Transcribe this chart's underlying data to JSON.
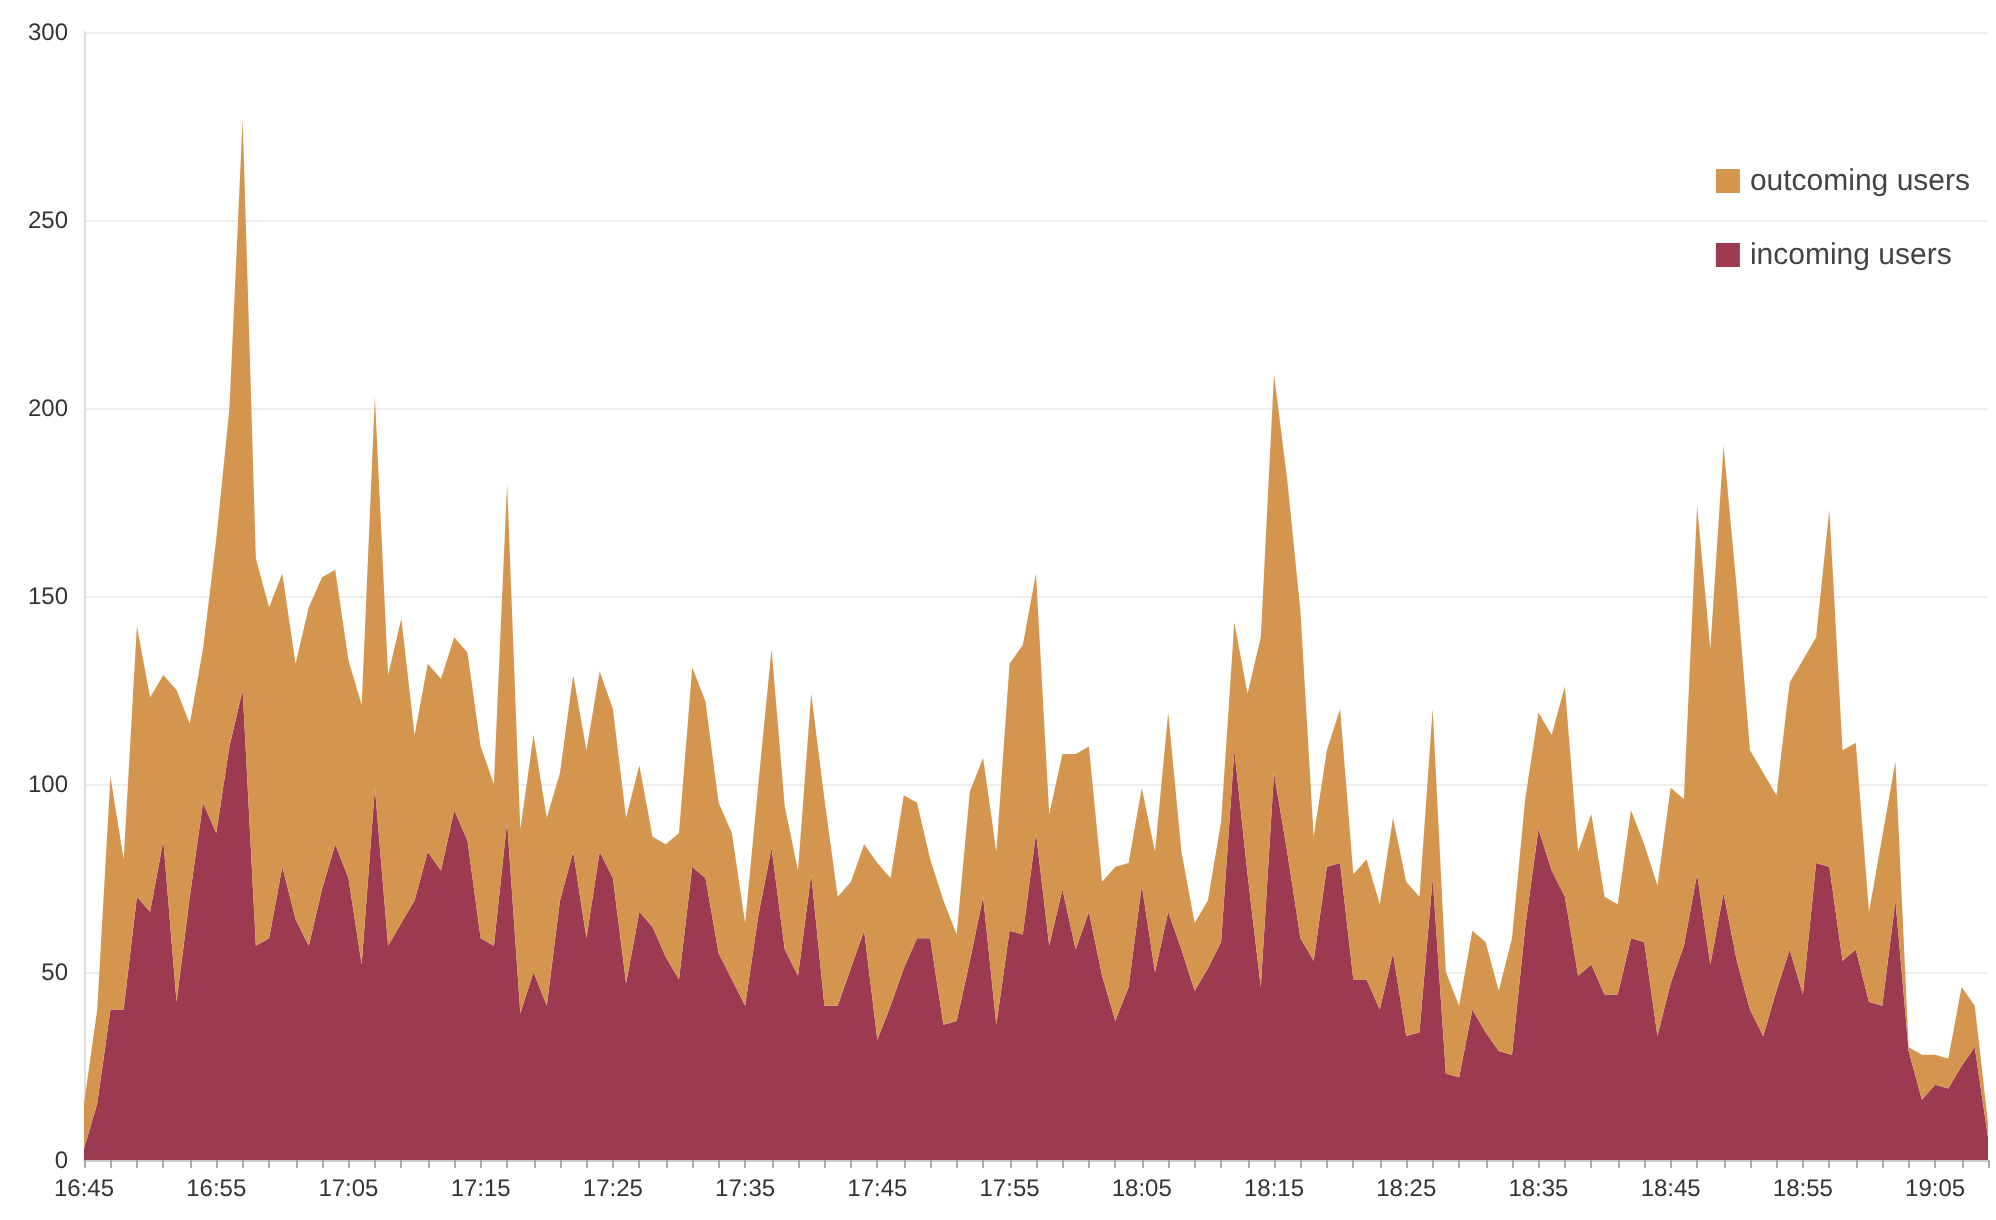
{
  "chart_data": {
    "type": "area",
    "stacked": true,
    "grid": "y",
    "legend": "top right",
    "categories": [
      "16:45",
      null,
      null,
      null,
      null,
      null,
      null,
      null,
      null,
      null,
      "16:55",
      null,
      null,
      null,
      null,
      null,
      null,
      null,
      null,
      null,
      "17:05",
      null,
      null,
      null,
      null,
      null,
      null,
      null,
      null,
      null,
      "17:15",
      null,
      null,
      null,
      null,
      null,
      null,
      null,
      null,
      null,
      "17:25",
      null,
      null,
      null,
      null,
      null,
      null,
      null,
      null,
      null,
      "17:35",
      null,
      null,
      null,
      null,
      null,
      null,
      null,
      null,
      null,
      "17:45",
      null,
      null,
      null,
      null,
      null,
      null,
      null,
      null,
      null,
      "17:55",
      null,
      null,
      null,
      null,
      null,
      null,
      null,
      null,
      null,
      "18:05",
      null,
      null,
      null,
      null,
      null,
      null,
      null,
      null,
      null,
      "18:15",
      null,
      null,
      null,
      null,
      null,
      null,
      null,
      null,
      null,
      "18:25",
      null,
      null,
      null,
      null,
      null,
      null,
      null,
      null,
      null,
      "18:35",
      null,
      null,
      null,
      null,
      null,
      null,
      null,
      null,
      null,
      "18:45",
      null,
      null,
      null,
      null,
      null,
      null,
      null,
      null,
      null,
      "18:55",
      null,
      null,
      null,
      null,
      null,
      null,
      null,
      null,
      null,
      "19:05",
      null,
      null,
      null,
      null
    ],
    "ylim": [
      0,
      300
    ],
    "yticks": [
      0,
      50,
      100,
      150,
      200,
      250,
      300
    ],
    "series": [
      {
        "name": "incoming users",
        "color": "#9c3a52",
        "values": [
          3,
          15,
          40,
          40,
          70,
          66,
          85,
          42,
          70,
          95,
          87,
          110,
          125,
          57,
          59,
          78,
          64,
          57,
          72,
          84,
          75,
          52,
          99,
          57,
          63,
          69,
          82,
          77,
          93,
          85,
          59,
          57,
          90,
          39,
          50,
          41,
          69,
          82,
          59,
          82,
          75,
          47,
          66,
          62,
          54,
          48,
          78,
          75,
          55,
          48,
          41,
          65,
          83,
          56,
          49,
          76,
          41,
          41,
          51,
          61,
          32,
          41,
          51,
          59,
          59,
          36,
          37,
          53,
          70,
          36,
          61,
          60,
          87,
          57,
          72,
          56,
          66,
          49,
          37,
          46,
          73,
          50,
          66,
          56,
          45,
          51,
          58,
          109,
          76,
          46,
          103,
          82,
          59,
          53,
          78,
          79,
          48,
          48,
          40,
          55,
          33,
          34,
          75,
          23,
          22,
          40,
          34,
          29,
          28,
          62,
          88,
          77,
          70,
          49,
          52,
          44,
          44,
          59,
          58,
          33,
          47,
          57,
          76,
          52,
          71,
          53,
          40,
          33,
          45,
          56,
          44,
          79,
          78,
          53,
          56,
          42,
          41,
          69,
          29,
          16,
          20,
          19,
          25,
          30,
          6
        ]
      },
      {
        "name": "outcoming users",
        "color": "#d4964f",
        "values": [
          12,
          25,
          62,
          40,
          72,
          57,
          44,
          83,
          46,
          41,
          78,
          90,
          152,
          103,
          88,
          78,
          68,
          90,
          83,
          73,
          58,
          69,
          104,
          72,
          81,
          44,
          50,
          51,
          46,
          50,
          51,
          43,
          90,
          49,
          63,
          50,
          34,
          47,
          50,
          48,
          45,
          44,
          39,
          24,
          30,
          39,
          53,
          47,
          40,
          39,
          22,
          35,
          53,
          38,
          28,
          48,
          55,
          29,
          23,
          23,
          47,
          34,
          46,
          36,
          21,
          33,
          23,
          45,
          37,
          46,
          71,
          77,
          69,
          35,
          36,
          52,
          44,
          25,
          41,
          33,
          26,
          32,
          53,
          26,
          18,
          18,
          32,
          34,
          48,
          93,
          106,
          99,
          87,
          33,
          31,
          41,
          28,
          32,
          28,
          36,
          41,
          36,
          45,
          27,
          19,
          21,
          24,
          16,
          31,
          34,
          31,
          36,
          56,
          33,
          40,
          26,
          24,
          34,
          26,
          40,
          52,
          39,
          98,
          84,
          119,
          99,
          69,
          70,
          52,
          71,
          89,
          60,
          95,
          56,
          55,
          24,
          45,
          37,
          1,
          12,
          8,
          8,
          21,
          11,
          4
        ]
      }
    ]
  }
}
